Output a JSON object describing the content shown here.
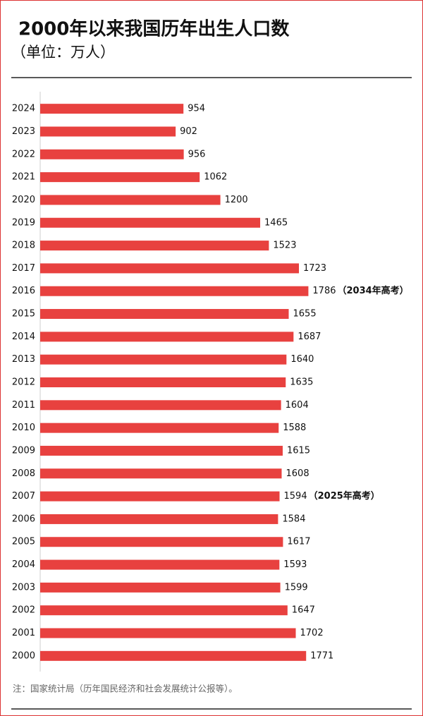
{
  "chart_data": {
    "type": "barh",
    "title": "2000年以来我国历年出生人口数",
    "subtitle": "（单位：万人）",
    "note": "注：国家统计局（历年国民经济和社会发展统计公报等）。",
    "categories": [
      "2024",
      "2023",
      "2022",
      "2021",
      "2020",
      "2019",
      "2018",
      "2017",
      "2016",
      "2015",
      "2014",
      "2013",
      "2012",
      "2011",
      "2010",
      "2009",
      "2008",
      "2007",
      "2006",
      "2005",
      "2004",
      "2003",
      "2002",
      "2001",
      "2000"
    ],
    "values": [
      954,
      902,
      956,
      1062,
      1200,
      1465,
      1523,
      1723,
      1786,
      1655,
      1687,
      1640,
      1635,
      1604,
      1588,
      1615,
      1608,
      1594,
      1584,
      1617,
      1593,
      1599,
      1647,
      1702,
      1771
    ],
    "annotations": [
      null,
      null,
      null,
      null,
      null,
      null,
      null,
      null,
      "（2034年高考）",
      null,
      null,
      null,
      null,
      null,
      null,
      null,
      null,
      "（2025年高考）",
      null,
      null,
      null,
      null,
      null,
      null,
      null
    ],
    "color": "#e8413f",
    "xlim": [
      0,
      2000
    ]
  }
}
